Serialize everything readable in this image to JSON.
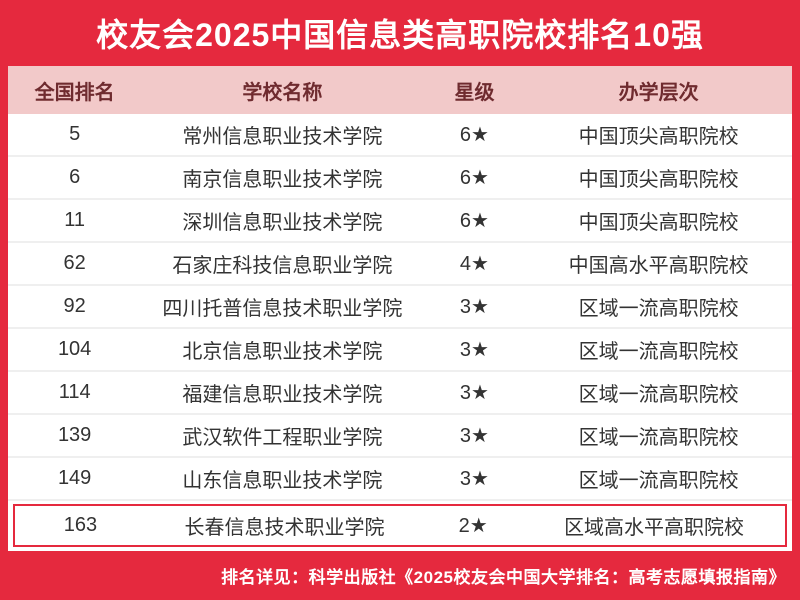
{
  "title": "校友会2025中国信息类高职院校排名10强",
  "columns": {
    "rank": "全国排名",
    "school": "学校名称",
    "star": "星级",
    "level": "办学层次"
  },
  "rows": [
    {
      "rank": "5",
      "school": "常州信息职业技术学院",
      "star": "6★",
      "level": "中国顶尖高职院校",
      "highlighted": false
    },
    {
      "rank": "6",
      "school": "南京信息职业技术学院",
      "star": "6★",
      "level": "中国顶尖高职院校",
      "highlighted": false
    },
    {
      "rank": "11",
      "school": "深圳信息职业技术学院",
      "star": "6★",
      "level": "中国顶尖高职院校",
      "highlighted": false
    },
    {
      "rank": "62",
      "school": "石家庄科技信息职业学院",
      "star": "4★",
      "level": "中国高水平高职院校",
      "highlighted": false
    },
    {
      "rank": "92",
      "school": "四川托普信息技术职业学院",
      "star": "3★",
      "level": "区域一流高职院校",
      "highlighted": false
    },
    {
      "rank": "104",
      "school": "北京信息职业技术学院",
      "star": "3★",
      "level": "区域一流高职院校",
      "highlighted": false
    },
    {
      "rank": "114",
      "school": "福建信息职业技术学院",
      "star": "3★",
      "level": "区域一流高职院校",
      "highlighted": false
    },
    {
      "rank": "139",
      "school": "武汉软件工程职业学院",
      "star": "3★",
      "level": "区域一流高职院校",
      "highlighted": false
    },
    {
      "rank": "149",
      "school": "山东信息职业技术学院",
      "star": "3★",
      "level": "区域一流高职院校",
      "highlighted": false
    },
    {
      "rank": "163",
      "school": "长春信息技术职业学院",
      "star": "2★",
      "level": "区域高水平高职院校",
      "highlighted": true
    }
  ],
  "footer_note": "排名详见：科学出版社《2025校友会中国大学排名：高考志愿填报指南》",
  "colors": {
    "accent_red": "#e5293e",
    "header_pink": "#f2c9c9",
    "header_text": "#6f2b2f",
    "cell_text": "#333333"
  },
  "chart_data": {
    "type": "table",
    "title": "校友会2025中国信息类高职院校排名10强",
    "columns": [
      "全国排名",
      "学校名称",
      "星级",
      "办学层次"
    ],
    "rows": [
      [
        "5",
        "常州信息职业技术学院",
        "6★",
        "中国顶尖高职院校"
      ],
      [
        "6",
        "南京信息职业技术学院",
        "6★",
        "中国顶尖高职院校"
      ],
      [
        "11",
        "深圳信息职业技术学院",
        "6★",
        "中国顶尖高职院校"
      ],
      [
        "62",
        "石家庄科技信息职业学院",
        "4★",
        "中国高水平高职院校"
      ],
      [
        "92",
        "四川托普信息技术职业学院",
        "3★",
        "区域一流高职院校"
      ],
      [
        "104",
        "北京信息职业技术学院",
        "3★",
        "区域一流高职院校"
      ],
      [
        "114",
        "福建信息职业技术学院",
        "3★",
        "区域一流高职院校"
      ],
      [
        "139",
        "武汉软件工程职业学院",
        "3★",
        "区域一流高职院校"
      ],
      [
        "149",
        "山东信息职业技术学院",
        "3★",
        "区域一流高职院校"
      ],
      [
        "163",
        "长春信息技术职业学院",
        "2★",
        "区域高水平高职院校"
      ]
    ],
    "note": "排名详见：科学出版社《2025校友会中国大学排名：高考志愿填报指南》"
  }
}
